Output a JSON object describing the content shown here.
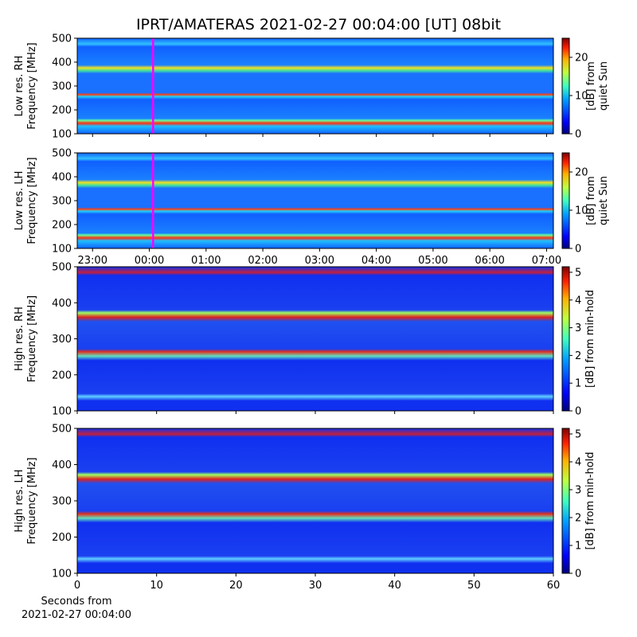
{
  "title": "IPRT/AMATERAS 2021-02-27 00:04:00 [UT]   08bit",
  "chart_data": [
    {
      "type": "spectrogram",
      "ylabel": [
        "Low res. RH",
        "Frequency [MHz]"
      ],
      "xlim": [
        -1.27,
        7.12
      ],
      "ylim": [
        100,
        500
      ],
      "yticks": [
        100,
        200,
        300,
        400,
        500
      ],
      "clim": [
        0,
        25
      ],
      "cticks": [
        0,
        10,
        20
      ],
      "clabel": [
        "[dB] from",
        "quiet Sun"
      ],
      "vline": 0.067,
      "vline_color": "#ff00ff"
    },
    {
      "type": "spectrogram",
      "ylabel": [
        "Low res. LH",
        "Frequency [MHz]"
      ],
      "xlim": [
        -1.27,
        7.12
      ],
      "xticks": [
        {
          "value": -1,
          "label": "23:00"
        },
        {
          "value": 0,
          "label": "00:00"
        },
        {
          "value": 1,
          "label": "01:00"
        },
        {
          "value": 2,
          "label": "02:00"
        },
        {
          "value": 3,
          "label": "03:00"
        },
        {
          "value": 4,
          "label": "04:00"
        },
        {
          "value": 5,
          "label": "05:00"
        },
        {
          "value": 6,
          "label": "06:00"
        },
        {
          "value": 7,
          "label": "07:00"
        }
      ],
      "ylim": [
        100,
        500
      ],
      "yticks": [
        100,
        200,
        300,
        400,
        500
      ],
      "clim": [
        0,
        25
      ],
      "cticks": [
        0,
        10,
        20
      ],
      "clabel": [
        "[dB] from",
        "quiet Sun"
      ],
      "vline": 0.067,
      "vline_color": "#ff00ff"
    },
    {
      "type": "spectrogram",
      "ylabel": [
        "High res. RH",
        "Frequency [MHz]"
      ],
      "xlim": [
        0,
        60
      ],
      "ylim": [
        100,
        500
      ],
      "yticks": [
        100,
        200,
        300,
        400,
        500
      ],
      "clim": [
        0,
        5.2
      ],
      "cticks": [
        0,
        1,
        2,
        3,
        4,
        5
      ],
      "clabel": [
        "[dB] from min-hold"
      ]
    },
    {
      "type": "spectrogram",
      "ylabel": [
        "High res. LH",
        "Frequency [MHz]"
      ],
      "xlim": [
        0,
        60
      ],
      "xticks": [
        0,
        10,
        20,
        30,
        40,
        50,
        60
      ],
      "xlabel": [
        "Seconds from",
        "2021-02-27 00:04:00"
      ],
      "ylim": [
        100,
        500
      ],
      "yticks": [
        100,
        200,
        300,
        400,
        500
      ],
      "clim": [
        0,
        5.2
      ],
      "cticks": [
        0,
        1,
        2,
        3,
        4,
        5
      ],
      "clabel": [
        "[dB] from min-hold"
      ]
    }
  ]
}
